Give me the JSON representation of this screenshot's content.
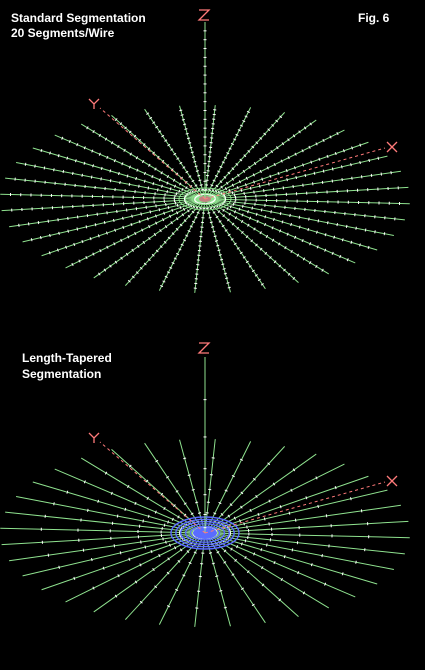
{
  "figure_label": "Fig. 6",
  "panels": [
    {
      "caption_line1": "Standard Segmentation",
      "caption_line2": "20 Segments/Wire",
      "segmentation": "uniform",
      "segments_per_wire": 20
    },
    {
      "caption_line1": "Length-Tapered",
      "caption_line2": "Segmentation",
      "segmentation": "length-tapered"
    }
  ],
  "axes": {
    "z": "Z",
    "y": "Y",
    "x": "X"
  },
  "radial_wire_count": 36,
  "colors": {
    "background": "#000000",
    "wire": "#8fe28f",
    "axis": "#ff7a7a",
    "segment_mark": "#ffffff",
    "tapered_hub": "#5a6cff",
    "caption": "#ffffff"
  }
}
